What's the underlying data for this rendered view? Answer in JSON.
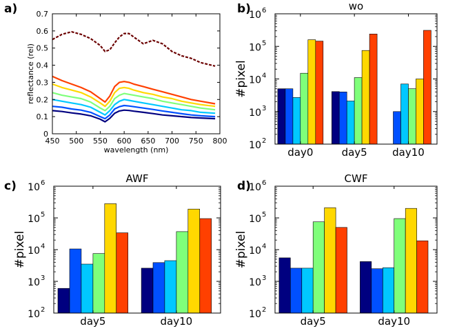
{
  "chart_data": [
    {
      "panel": "a)",
      "type": "line",
      "title": "",
      "xlabel": "wavelength (nm)",
      "ylabel": "reflectance (rel)",
      "xlim": [
        450,
        800
      ],
      "ylim": [
        0,
        0.7
      ],
      "xticks": [
        "450",
        "500",
        "550",
        "600",
        "650",
        "700",
        "750",
        "800"
      ],
      "yticks": [
        "0",
        "0.1",
        "0.2",
        "0.3",
        "0.4",
        "0.5",
        "0.6",
        "0.7"
      ],
      "x": [
        450,
        470,
        490,
        510,
        530,
        550,
        560,
        570,
        580,
        590,
        600,
        610,
        620,
        640,
        660,
        680,
        700,
        720,
        740,
        760,
        790
      ],
      "series": [
        {
          "color": "#6b0000",
          "style": "dashed",
          "values": [
            0.55,
            0.58,
            0.595,
            0.58,
            0.555,
            0.515,
            0.48,
            0.49,
            0.53,
            0.565,
            0.585,
            0.585,
            0.565,
            0.525,
            0.545,
            0.525,
            0.48,
            0.455,
            0.44,
            0.415,
            0.395
          ]
        },
        {
          "color": "#ff4000",
          "style": "solid",
          "values": [
            0.335,
            0.31,
            0.29,
            0.27,
            0.245,
            0.205,
            0.185,
            0.22,
            0.275,
            0.3,
            0.305,
            0.3,
            0.29,
            0.275,
            0.26,
            0.245,
            0.23,
            0.215,
            0.2,
            0.19,
            0.175
          ]
        },
        {
          "color": "#ffd800",
          "style": "solid",
          "values": [
            0.29,
            0.27,
            0.255,
            0.24,
            0.215,
            0.18,
            0.16,
            0.19,
            0.24,
            0.265,
            0.27,
            0.265,
            0.255,
            0.24,
            0.23,
            0.215,
            0.205,
            0.19,
            0.18,
            0.17,
            0.16
          ]
        },
        {
          "color": "#7fff7a",
          "style": "solid",
          "values": [
            0.24,
            0.225,
            0.215,
            0.205,
            0.185,
            0.15,
            0.135,
            0.16,
            0.205,
            0.225,
            0.235,
            0.23,
            0.225,
            0.215,
            0.205,
            0.19,
            0.18,
            0.17,
            0.16,
            0.15,
            0.14
          ]
        },
        {
          "color": "#00c8ff",
          "style": "solid",
          "values": [
            0.2,
            0.19,
            0.18,
            0.17,
            0.155,
            0.125,
            0.11,
            0.135,
            0.17,
            0.19,
            0.2,
            0.195,
            0.19,
            0.18,
            0.17,
            0.16,
            0.15,
            0.14,
            0.135,
            0.125,
            0.12
          ]
        },
        {
          "color": "#0050ff",
          "style": "solid",
          "values": [
            0.16,
            0.155,
            0.145,
            0.138,
            0.125,
            0.1,
            0.088,
            0.11,
            0.145,
            0.158,
            0.165,
            0.162,
            0.158,
            0.15,
            0.142,
            0.133,
            0.125,
            0.117,
            0.11,
            0.105,
            0.1
          ]
        },
        {
          "color": "#000080",
          "style": "solid",
          "values": [
            0.135,
            0.13,
            0.122,
            0.115,
            0.105,
            0.085,
            0.07,
            0.09,
            0.12,
            0.133,
            0.138,
            0.136,
            0.132,
            0.125,
            0.118,
            0.11,
            0.105,
            0.1,
            0.095,
            0.092,
            0.088
          ]
        }
      ]
    },
    {
      "panel": "b)",
      "type": "bar",
      "title": "wo",
      "ylabel": "#pixel",
      "scale": "log",
      "ylim": [
        100,
        1000000
      ],
      "ytick_bases": [
        "10",
        "10",
        "10",
        "10",
        "10"
      ],
      "ytick_exps": [
        "2",
        "3",
        "4",
        "5",
        "6"
      ],
      "categories": [
        "day0",
        "day5",
        "day10"
      ],
      "colors": [
        "#000080",
        "#0050ff",
        "#00c8ff",
        "#7fff7a",
        "#ffd800",
        "#ff4000"
      ],
      "series_values": [
        [
          5000,
          5000,
          2700,
          15000,
          160000,
          145000
        ],
        [
          4100,
          4000,
          2100,
          11000,
          75000,
          240000
        ],
        [
          null,
          1000,
          7000,
          5000,
          10000,
          310000
        ]
      ]
    },
    {
      "panel": "c)",
      "type": "bar",
      "title": "AWF",
      "ylabel": "#pixel",
      "scale": "log",
      "ylim": [
        100,
        1000000
      ],
      "ytick_bases": [
        "10",
        "10",
        "10",
        "10",
        "10"
      ],
      "ytick_exps": [
        "2",
        "3",
        "4",
        "5",
        "6"
      ],
      "categories": [
        "day5",
        "day10"
      ],
      "colors": [
        "#000080",
        "#0050ff",
        "#00c8ff",
        "#7fff7a",
        "#ffd800",
        "#ff4000"
      ],
      "series_values": [
        [
          600,
          10500,
          3500,
          7500,
          280000,
          34000
        ],
        [
          2600,
          3900,
          4500,
          37000,
          190000,
          95000
        ]
      ]
    },
    {
      "panel": "d)",
      "type": "bar",
      "title": "CWF",
      "ylabel": "#pixel",
      "scale": "log",
      "ylim": [
        100,
        1000000
      ],
      "ytick_bases": [
        "10",
        "10",
        "10",
        "10",
        "10"
      ],
      "ytick_exps": [
        "2",
        "3",
        "4",
        "5",
        "6"
      ],
      "categories": [
        "day5",
        "day10"
      ],
      "colors": [
        "#000080",
        "#0050ff",
        "#00c8ff",
        "#7fff7a",
        "#ffd800",
        "#ff4000"
      ],
      "series_values": [
        [
          5500,
          2600,
          2600,
          75000,
          210000,
          50000
        ],
        [
          4200,
          2500,
          2700,
          95000,
          200000,
          19000
        ]
      ]
    }
  ]
}
